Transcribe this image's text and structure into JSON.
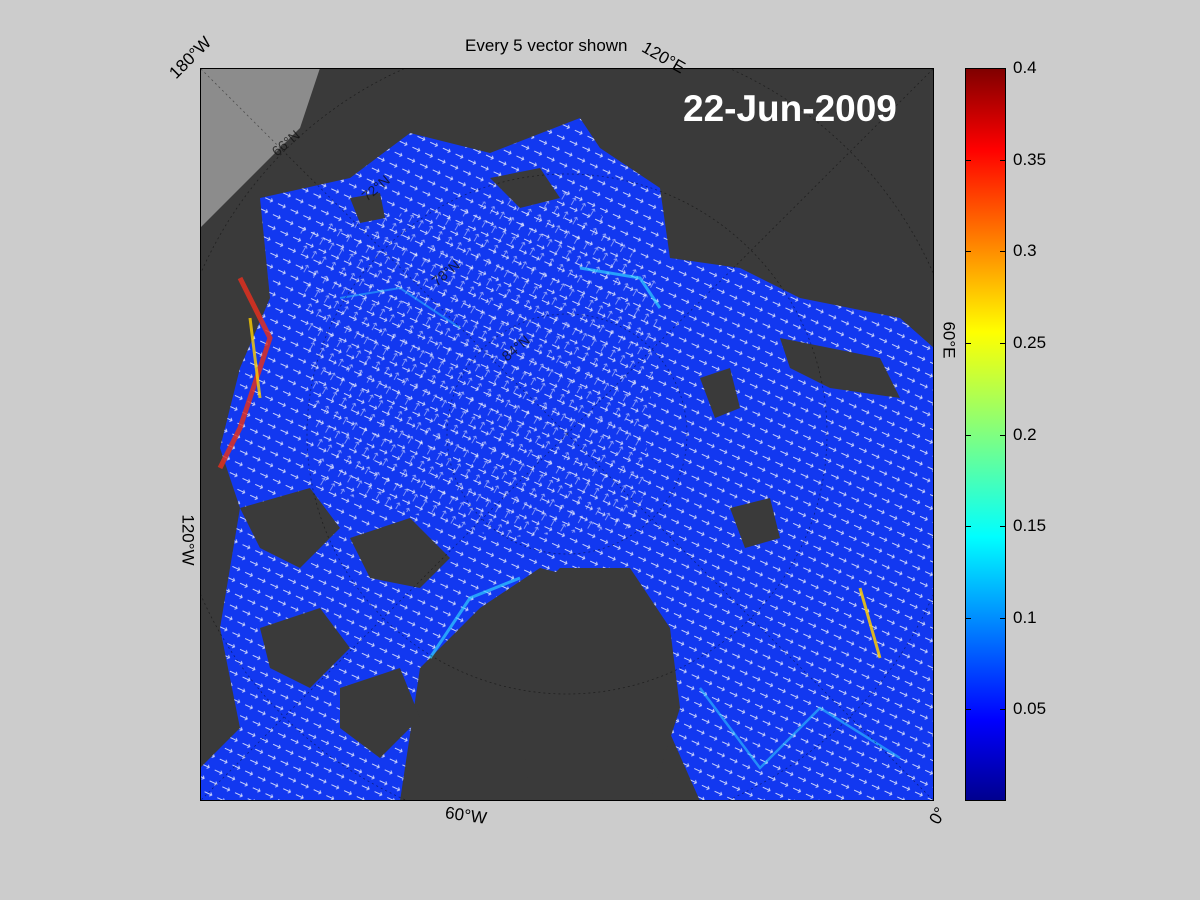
{
  "title": "Every 5 vector shown",
  "date_label": "22-Jun-2009",
  "map_labels": {
    "lon_180w": "180°W",
    "lon_120e": "120°E",
    "lon_120w": "120°W",
    "lon_60e": "60°E",
    "lon_60w": "60°W",
    "lon_0": "0°",
    "lat_66n": "66°N",
    "lat_72n": "72°N",
    "lat_78n": "78°N",
    "lat_84n": "84°N"
  },
  "colorbar": {
    "range": [
      0,
      0.4
    ],
    "ticks": [
      "0.4",
      "0.35",
      "0.3",
      "0.25",
      "0.2",
      "0.15",
      "0.1",
      "0.05"
    ],
    "tick_values": [
      0.4,
      0.35,
      0.3,
      0.25,
      0.2,
      0.15,
      0.1,
      0.05
    ],
    "colormap": "jet"
  },
  "colors": {
    "background": "#cccccc",
    "land": "#3a3a3a",
    "ice_edge": "#8c8c8c",
    "vectors": "#ffffff",
    "low_speed": "#0a1dff",
    "high_speed": "#b00000"
  }
}
